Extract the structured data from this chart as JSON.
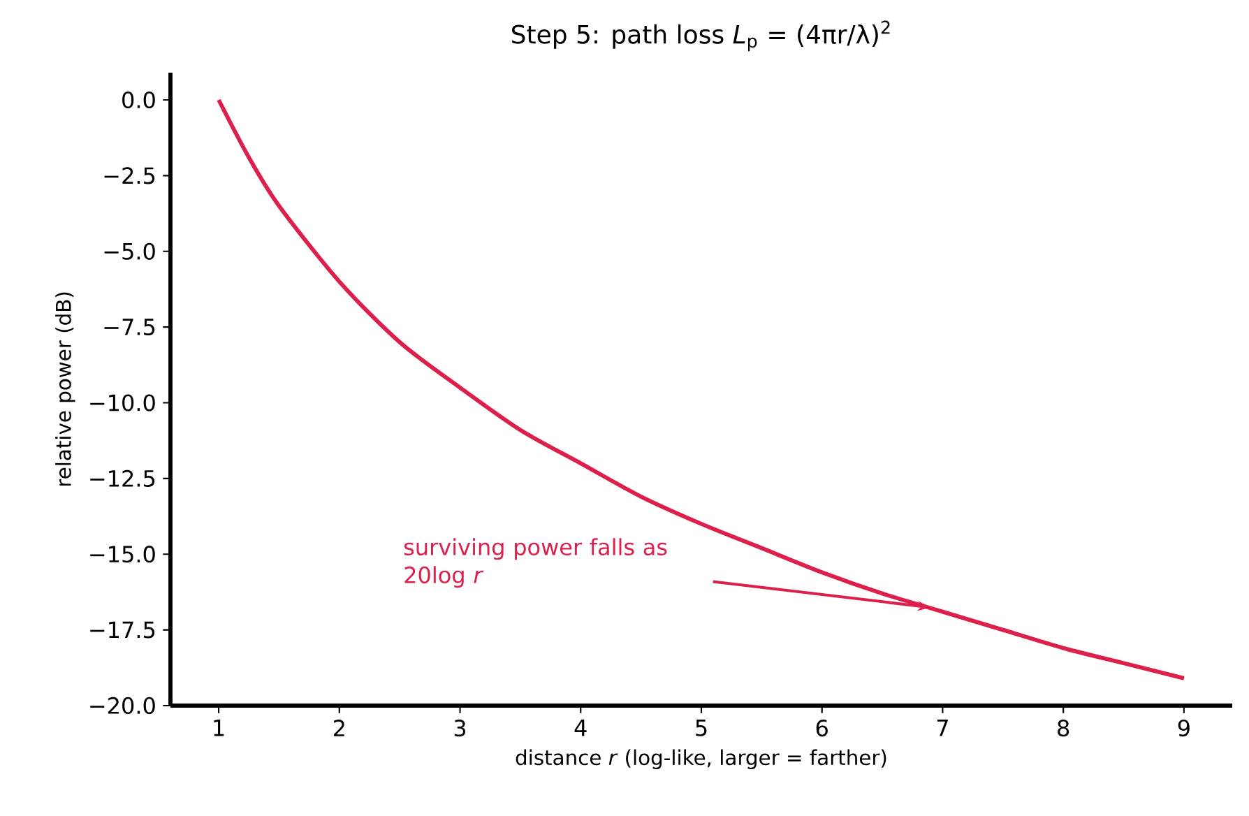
{
  "chart_data": {
    "type": "line",
    "title": "Step 5: path loss *L*$_{p}$ = (4πr/λ)$^{2}$",
    "xlabel": "distance *r* (log-like, larger = farther)",
    "ylabel": "relative power (dB)",
    "x": [
      1,
      1.25,
      1.5,
      2,
      2.5,
      3,
      3.5,
      4,
      4.5,
      5,
      5.5,
      6,
      6.5,
      7,
      7.5,
      8,
      8.5,
      9
    ],
    "series": [
      {
        "color": "#dc1f4b",
        "values": [
          0,
          -1.9,
          -3.5,
          -6.0,
          -8.0,
          -9.5,
          -10.9,
          -12.0,
          -13.1,
          -14.0,
          -14.8,
          -15.6,
          -16.3,
          -16.9,
          -17.5,
          -18.1,
          -18.6,
          -19.1
        ]
      }
    ],
    "xlim": [
      0.6,
      9.4
    ],
    "ylim": [
      -20,
      0.9
    ],
    "xticks": [
      1,
      2,
      3,
      4,
      5,
      6,
      7,
      8,
      9
    ],
    "yticks": [
      {
        "value": 0,
        "label": "0.0"
      },
      {
        "value": -2.5,
        "label": "−2.5"
      },
      {
        "value": -5,
        "label": "−5.0"
      },
      {
        "value": -7.5,
        "label": "−7.5"
      },
      {
        "value": -10,
        "label": "−10.0"
      },
      {
        "value": -12.5,
        "label": "−12.5"
      },
      {
        "value": -15,
        "label": "−15.0"
      },
      {
        "value": -17.5,
        "label": "−17.5"
      },
      {
        "value": -20,
        "label": "−20.0"
      }
    ],
    "annotations": [
      "surviving power falls as 20log *r*"
    ],
    "grid": false,
    "marker": "none",
    "line_style": "solid"
  }
}
